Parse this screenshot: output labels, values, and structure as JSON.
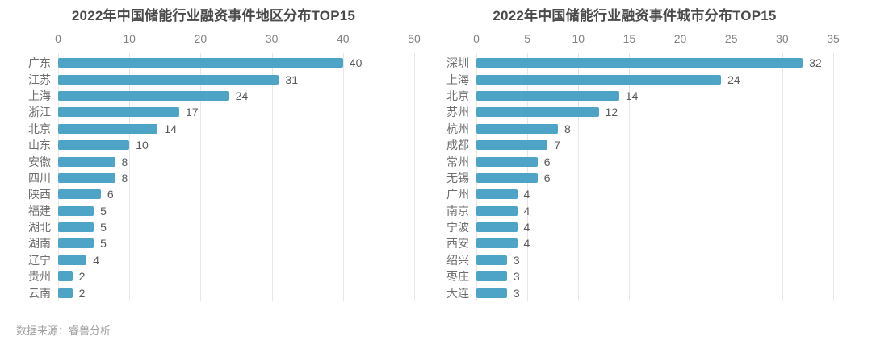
{
  "chart_data": [
    {
      "type": "bar",
      "orientation": "horizontal",
      "title": "2022年中国储能行业融资事件地区分布TOP15",
      "categories": [
        "广东",
        "江苏",
        "上海",
        "浙江",
        "北京",
        "山东",
        "安徽",
        "四川",
        "陕西",
        "福建",
        "湖北",
        "湖南",
        "辽宁",
        "贵州",
        "云南"
      ],
      "values": [
        40,
        31,
        24,
        17,
        14,
        10,
        8,
        8,
        6,
        5,
        5,
        5,
        4,
        2,
        2
      ],
      "xlim": [
        0,
        50
      ],
      "xticks": [
        0,
        10,
        20,
        30,
        40,
        50
      ],
      "grid": true,
      "value_labels": true,
      "legend": "none",
      "bar_color": "#4da4c6"
    },
    {
      "type": "bar",
      "orientation": "horizontal",
      "title": "2022年中国储能行业融资事件城市分布TOP15",
      "categories": [
        "深圳",
        "上海",
        "北京",
        "苏州",
        "杭州",
        "成都",
        "常州",
        "无锡",
        "广州",
        "南京",
        "宁波",
        "西安",
        "绍兴",
        "枣庄",
        "大连"
      ],
      "values": [
        32,
        24,
        14,
        12,
        8,
        7,
        6,
        6,
        4,
        4,
        4,
        4,
        3,
        3,
        3
      ],
      "xlim": [
        0,
        35
      ],
      "xticks": [
        0,
        5,
        10,
        15,
        20,
        25,
        30,
        35
      ],
      "grid": true,
      "value_labels": true,
      "legend": "none",
      "bar_color": "#4da4c6"
    }
  ],
  "footer": {
    "source_label": "数据来源：睿兽分析"
  },
  "colors": {
    "bar": "#4da4c6",
    "title": "#4a4a4a",
    "tick_label": "#828282",
    "category_label": "#6e6e6e",
    "value_label": "#595959",
    "gridline": "#e6e6e6",
    "footer": "#9e9e9e",
    "background": "#ffffff"
  }
}
